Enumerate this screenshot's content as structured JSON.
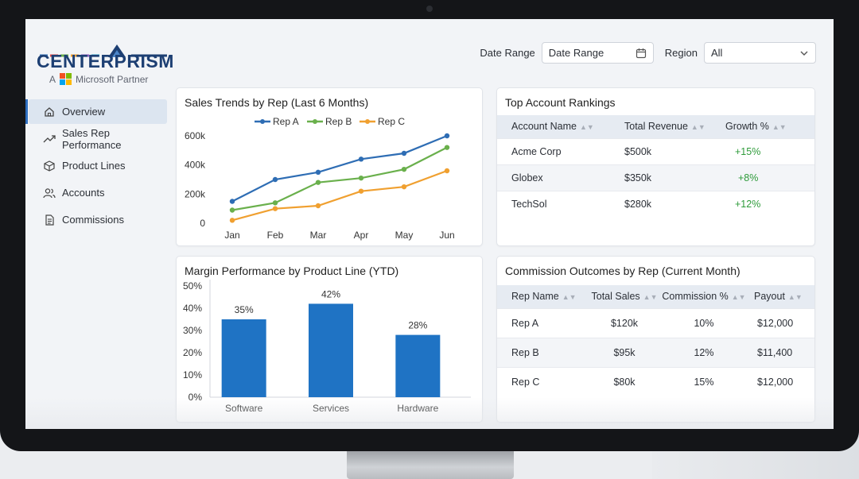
{
  "brand": {
    "name": "CENTERPRISM",
    "partner_prefix": "A",
    "partner_text": "Microsoft Partner"
  },
  "filters": {
    "date_label": "Date Range",
    "date_value": "Date Range",
    "region_label": "Region",
    "region_value": "All"
  },
  "sidebar": {
    "items": [
      {
        "label": "Overview",
        "icon": "home-icon"
      },
      {
        "label": "Sales Rep Performance",
        "icon": "trend-icon"
      },
      {
        "label": "Product Lines",
        "icon": "box-icon"
      },
      {
        "label": "Accounts",
        "icon": "users-icon"
      },
      {
        "label": "Commissions",
        "icon": "document-icon"
      }
    ]
  },
  "sales_trends": {
    "title": "Sales Trends by Rep (Last 6 Months)"
  },
  "margin": {
    "title": "Margin Performance by Product Line (YTD)"
  },
  "accounts": {
    "title": "Top Account Rankings",
    "headers": [
      "Account Name",
      "Total Revenue",
      "Growth %"
    ],
    "rows": [
      [
        "Acme Corp",
        "$500k",
        "+15%"
      ],
      [
        "Globex",
        "$350k",
        "+8%"
      ],
      [
        "TechSol",
        "$280k",
        "+12%"
      ]
    ]
  },
  "commission": {
    "title": "Commission Outcomes by Rep (Current Month)",
    "headers": [
      "Rep Name",
      "Total Sales",
      "Commission %",
      "Payout"
    ],
    "rows": [
      [
        "Rep A",
        "$120k",
        "10%",
        "$12,000"
      ],
      [
        "Rep B",
        "$95k",
        "12%",
        "$11,400"
      ],
      [
        "Rep C",
        "$80k",
        "15%",
        "$12,000"
      ]
    ]
  },
  "colors": {
    "rep_a": "#2e6db4",
    "rep_b": "#6ab04c",
    "rep_c": "#f0a030",
    "bar": "#1f73c4",
    "growth": "#2e9b3a"
  },
  "chart_data": [
    {
      "type": "line",
      "title": "Sales Trends by Rep (Last 6 Months)",
      "x": [
        "Jan",
        "Feb",
        "Mar",
        "Apr",
        "May",
        "Jun"
      ],
      "yticks": [
        "0",
        "200k",
        "400k",
        "600k"
      ],
      "ylim": [
        0,
        600000
      ],
      "legend": "top",
      "series": [
        {
          "name": "Rep A",
          "values": [
            150000,
            300000,
            350000,
            440000,
            480000,
            600000
          ]
        },
        {
          "name": "Rep B",
          "values": [
            90000,
            140000,
            280000,
            310000,
            370000,
            520000
          ]
        },
        {
          "name": "Rep C",
          "values": [
            20000,
            100000,
            120000,
            220000,
            250000,
            360000
          ]
        }
      ]
    },
    {
      "type": "bar",
      "title": "Margin Performance by Product Line (YTD)",
      "categories": [
        "Software",
        "Services",
        "Hardware"
      ],
      "values": [
        35,
        42,
        28
      ],
      "value_labels": [
        "35%",
        "42%",
        "28%"
      ],
      "yticks": [
        "0%",
        "10%",
        "20%",
        "30%",
        "40%",
        "50%"
      ],
      "ylim": [
        0,
        50
      ]
    }
  ]
}
